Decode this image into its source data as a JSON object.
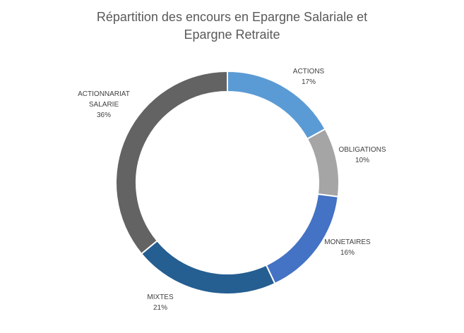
{
  "chart_data": {
    "type": "pie",
    "variant": "donut",
    "title": [
      "Répartition des encours en Epargne Salariale et",
      "Epargne Retraite"
    ],
    "slices": [
      {
        "name": [
          "ACTIONS"
        ],
        "value": 17,
        "value_label": "17%",
        "color": "#5b9bd5"
      },
      {
        "name": [
          "OBLIGATIONS"
        ],
        "value": 10,
        "value_label": "10%",
        "color": "#a5a5a5"
      },
      {
        "name": [
          "MONETAIRES"
        ],
        "value": 16,
        "value_label": "16%",
        "color": "#4472c4"
      },
      {
        "name": [
          "MIXTES"
        ],
        "value": 21,
        "value_label": "21%",
        "color": "#255e91"
      },
      {
        "name": [
          "ACTIONNARIAT",
          "SALARIE"
        ],
        "value": 36,
        "value_label": "36%",
        "color": "#636363"
      }
    ],
    "legend": "none",
    "start_angle": "12 o'clock, clockwise"
  }
}
